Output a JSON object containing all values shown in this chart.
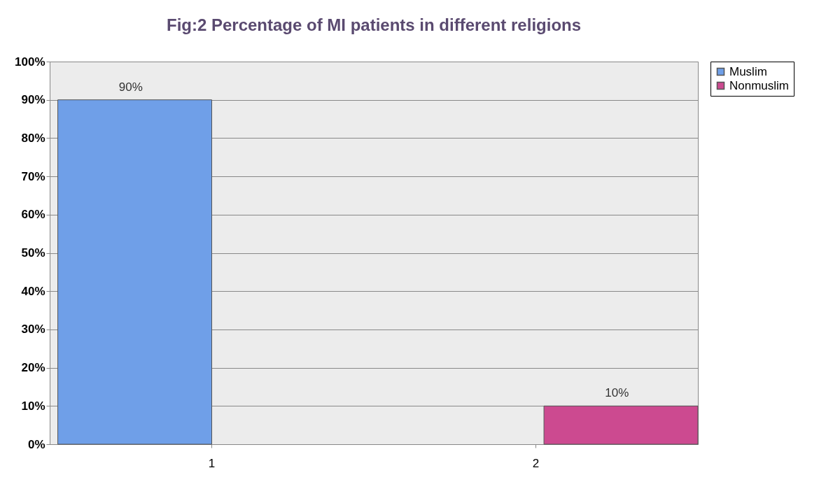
{
  "chart_data": {
    "type": "bar",
    "title": "Fig:2 Percentage of MI patients in different religions",
    "categories": [
      "1",
      "2"
    ],
    "series": [
      {
        "name": "Muslim",
        "color": "#6f9fe8",
        "values": [
          90,
          null
        ],
        "value_labels": [
          "90%",
          null
        ]
      },
      {
        "name": "Nonmuslim",
        "color": "#cc4a90",
        "values": [
          null,
          10
        ],
        "value_labels": [
          null,
          "10%"
        ]
      }
    ],
    "ylim": [
      0,
      100
    ],
    "yticks": [
      {
        "value": 0,
        "label": "0%"
      },
      {
        "value": 10,
        "label": "10%"
      },
      {
        "value": 20,
        "label": "20%"
      },
      {
        "value": 30,
        "label": "30%"
      },
      {
        "value": 40,
        "label": "40%"
      },
      {
        "value": 50,
        "label": "50%"
      },
      {
        "value": 60,
        "label": "60%"
      },
      {
        "value": 70,
        "label": "70%"
      },
      {
        "value": 80,
        "label": "80%"
      },
      {
        "value": 90,
        "label": "90%"
      },
      {
        "value": 100,
        "label": "100%"
      }
    ],
    "grid": "y",
    "legend": "right"
  }
}
